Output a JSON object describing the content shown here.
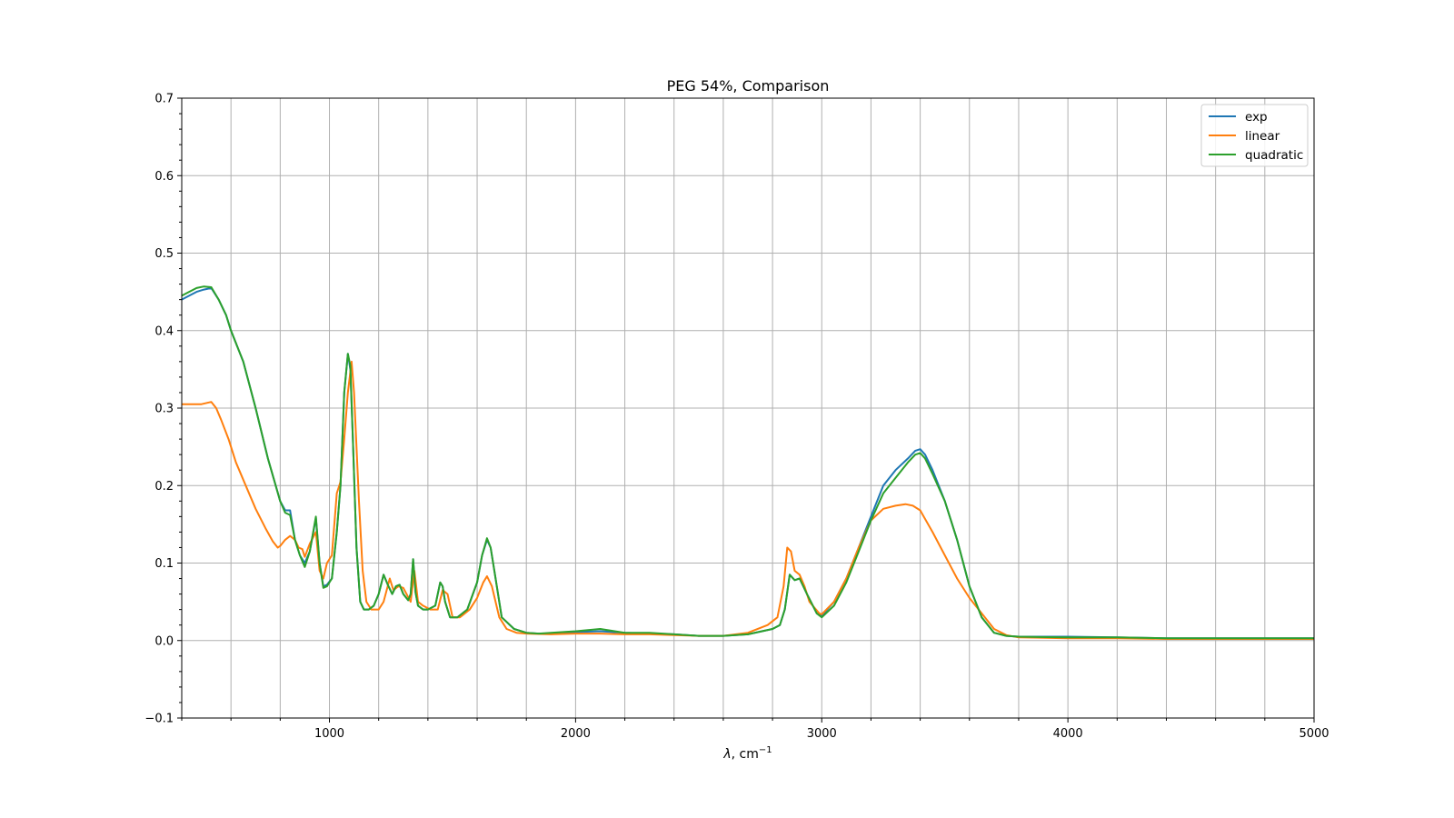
{
  "chart_data": {
    "type": "line",
    "title": "PEG 54%, Comparison",
    "xlabel_symbol": "λ",
    "xlabel_unit": ", cm",
    "xlabel_sup": "−1",
    "ylabel": "",
    "xlim": [
      400,
      5000
    ],
    "ylim": [
      -0.1,
      0.7
    ],
    "xticks": [
      1000,
      2000,
      3000,
      4000,
      5000
    ],
    "xtick_labels": [
      "1000",
      "2000",
      "3000",
      "4000",
      "5000"
    ],
    "yticks": [
      -0.1,
      0.0,
      0.1,
      0.2,
      0.3,
      0.4,
      0.5,
      0.6,
      0.7
    ],
    "ytick_labels": [
      "−0.1",
      "0.0",
      "0.1",
      "0.2",
      "0.3",
      "0.4",
      "0.5",
      "0.6",
      "0.7"
    ],
    "x_grid_step": 200,
    "grid": true,
    "legend_position": "top-right",
    "series": [
      {
        "name": "exp",
        "color": "#1f77b4",
        "x": [
          400,
          430,
          460,
          490,
          520,
          550,
          580,
          600,
          650,
          700,
          750,
          800,
          820,
          840,
          860,
          880,
          900,
          920,
          945,
          960,
          975,
          990,
          1010,
          1030,
          1045,
          1060,
          1075,
          1085,
          1095,
          1110,
          1125,
          1140,
          1160,
          1180,
          1200,
          1220,
          1240,
          1255,
          1270,
          1285,
          1300,
          1320,
          1330,
          1340,
          1350,
          1360,
          1380,
          1400,
          1430,
          1450,
          1460,
          1470,
          1490,
          1520,
          1560,
          1600,
          1620,
          1640,
          1655,
          1670,
          1700,
          1750,
          1800,
          1850,
          1900,
          2000,
          2100,
          2200,
          2300,
          2400,
          2500,
          2600,
          2700,
          2800,
          2830,
          2850,
          2870,
          2890,
          2910,
          2940,
          2980,
          3000,
          3050,
          3100,
          3150,
          3200,
          3250,
          3300,
          3350,
          3380,
          3400,
          3420,
          3450,
          3500,
          3550,
          3600,
          3650,
          3700,
          3750,
          3800,
          4000,
          4200,
          4400,
          4600,
          4800,
          5000
        ],
        "y": [
          0.44,
          0.445,
          0.45,
          0.453,
          0.455,
          0.44,
          0.42,
          0.4,
          0.36,
          0.3,
          0.235,
          0.18,
          0.168,
          0.168,
          0.13,
          0.11,
          0.1,
          0.115,
          0.158,
          0.1,
          0.07,
          0.072,
          0.08,
          0.14,
          0.2,
          0.32,
          0.37,
          0.35,
          0.26,
          0.12,
          0.05,
          0.04,
          0.04,
          0.045,
          0.06,
          0.085,
          0.07,
          0.06,
          0.07,
          0.072,
          0.06,
          0.052,
          0.06,
          0.105,
          0.062,
          0.045,
          0.04,
          0.04,
          0.045,
          0.075,
          0.07,
          0.05,
          0.03,
          0.03,
          0.04,
          0.075,
          0.11,
          0.13,
          0.12,
          0.09,
          0.03,
          0.015,
          0.01,
          0.009,
          0.009,
          0.011,
          0.012,
          0.01,
          0.009,
          0.008,
          0.006,
          0.006,
          0.008,
          0.015,
          0.02,
          0.04,
          0.085,
          0.078,
          0.08,
          0.06,
          0.035,
          0.032,
          0.05,
          0.08,
          0.12,
          0.16,
          0.2,
          0.22,
          0.235,
          0.245,
          0.247,
          0.24,
          0.22,
          0.18,
          0.13,
          0.07,
          0.03,
          0.01,
          0.006,
          0.005,
          0.005,
          0.004,
          0.003,
          0.003,
          0.003,
          0.003
        ]
      },
      {
        "name": "linear",
        "color": "#ff7f0e",
        "x": [
          400,
          440,
          480,
          520,
          540,
          560,
          590,
          620,
          660,
          700,
          740,
          770,
          790,
          800,
          820,
          840,
          860,
          875,
          890,
          900,
          920,
          945,
          960,
          975,
          990,
          1010,
          1030,
          1045,
          1060,
          1075,
          1090,
          1100,
          1120,
          1135,
          1150,
          1170,
          1200,
          1220,
          1245,
          1260,
          1280,
          1300,
          1330,
          1345,
          1360,
          1380,
          1410,
          1440,
          1460,
          1480,
          1500,
          1530,
          1570,
          1600,
          1625,
          1640,
          1660,
          1690,
          1720,
          1760,
          1800,
          1900,
          2000,
          2100,
          2200,
          2300,
          2400,
          2500,
          2600,
          2700,
          2780,
          2820,
          2845,
          2860,
          2875,
          2890,
          2910,
          2930,
          2950,
          2990,
          3000,
          3050,
          3100,
          3150,
          3200,
          3250,
          3300,
          3340,
          3370,
          3400,
          3450,
          3500,
          3550,
          3600,
          3650,
          3700,
          3750,
          3800,
          4000,
          4200,
          4400,
          4600,
          4800,
          5000
        ],
        "y": [
          0.305,
          0.305,
          0.305,
          0.308,
          0.3,
          0.285,
          0.26,
          0.23,
          0.2,
          0.17,
          0.145,
          0.128,
          0.12,
          0.122,
          0.13,
          0.135,
          0.13,
          0.12,
          0.118,
          0.108,
          0.125,
          0.14,
          0.09,
          0.08,
          0.1,
          0.11,
          0.19,
          0.205,
          0.26,
          0.32,
          0.36,
          0.32,
          0.18,
          0.09,
          0.05,
          0.04,
          0.04,
          0.05,
          0.08,
          0.065,
          0.07,
          0.068,
          0.05,
          0.09,
          0.05,
          0.045,
          0.04,
          0.04,
          0.065,
          0.06,
          0.03,
          0.03,
          0.04,
          0.055,
          0.075,
          0.083,
          0.07,
          0.03,
          0.015,
          0.01,
          0.009,
          0.008,
          0.009,
          0.009,
          0.008,
          0.008,
          0.007,
          0.006,
          0.006,
          0.01,
          0.02,
          0.03,
          0.07,
          0.12,
          0.115,
          0.09,
          0.085,
          0.07,
          0.05,
          0.035,
          0.034,
          0.05,
          0.08,
          0.12,
          0.155,
          0.17,
          0.174,
          0.176,
          0.174,
          0.168,
          0.14,
          0.11,
          0.08,
          0.055,
          0.035,
          0.015,
          0.007,
          0.004,
          0.003,
          0.003,
          0.002,
          0.002,
          0.002,
          0.002
        ]
      },
      {
        "name": "quadratic",
        "color": "#2ca02c",
        "x": [
          400,
          430,
          460,
          490,
          520,
          550,
          580,
          600,
          650,
          700,
          750,
          800,
          820,
          840,
          860,
          880,
          900,
          920,
          945,
          960,
          975,
          990,
          1010,
          1030,
          1045,
          1060,
          1075,
          1085,
          1095,
          1110,
          1125,
          1140,
          1160,
          1180,
          1200,
          1220,
          1240,
          1255,
          1270,
          1285,
          1300,
          1320,
          1330,
          1340,
          1350,
          1360,
          1380,
          1400,
          1430,
          1450,
          1460,
          1470,
          1490,
          1520,
          1560,
          1600,
          1620,
          1640,
          1655,
          1670,
          1700,
          1750,
          1800,
          1850,
          1900,
          2000,
          2100,
          2200,
          2300,
          2400,
          2500,
          2600,
          2700,
          2800,
          2830,
          2850,
          2870,
          2890,
          2910,
          2940,
          2980,
          3000,
          3050,
          3100,
          3150,
          3200,
          3250,
          3300,
          3350,
          3380,
          3400,
          3420,
          3450,
          3500,
          3550,
          3600,
          3650,
          3700,
          3750,
          3800,
          4000,
          4200,
          4400,
          4600,
          4800,
          5000
        ],
        "y": [
          0.445,
          0.45,
          0.455,
          0.457,
          0.456,
          0.44,
          0.42,
          0.4,
          0.36,
          0.3,
          0.235,
          0.18,
          0.165,
          0.162,
          0.13,
          0.11,
          0.095,
          0.115,
          0.16,
          0.1,
          0.068,
          0.07,
          0.08,
          0.14,
          0.2,
          0.32,
          0.37,
          0.355,
          0.26,
          0.12,
          0.05,
          0.04,
          0.04,
          0.045,
          0.06,
          0.085,
          0.07,
          0.06,
          0.07,
          0.072,
          0.06,
          0.052,
          0.06,
          0.105,
          0.062,
          0.045,
          0.04,
          0.04,
          0.045,
          0.075,
          0.07,
          0.05,
          0.03,
          0.03,
          0.04,
          0.075,
          0.11,
          0.132,
          0.12,
          0.09,
          0.03,
          0.015,
          0.01,
          0.009,
          0.01,
          0.012,
          0.015,
          0.01,
          0.01,
          0.008,
          0.006,
          0.006,
          0.008,
          0.015,
          0.02,
          0.04,
          0.085,
          0.078,
          0.08,
          0.06,
          0.035,
          0.03,
          0.045,
          0.075,
          0.115,
          0.155,
          0.19,
          0.21,
          0.23,
          0.24,
          0.242,
          0.235,
          0.215,
          0.18,
          0.13,
          0.07,
          0.03,
          0.01,
          0.006,
          0.005,
          0.004,
          0.004,
          0.003,
          0.003,
          0.003,
          0.003
        ]
      }
    ]
  }
}
